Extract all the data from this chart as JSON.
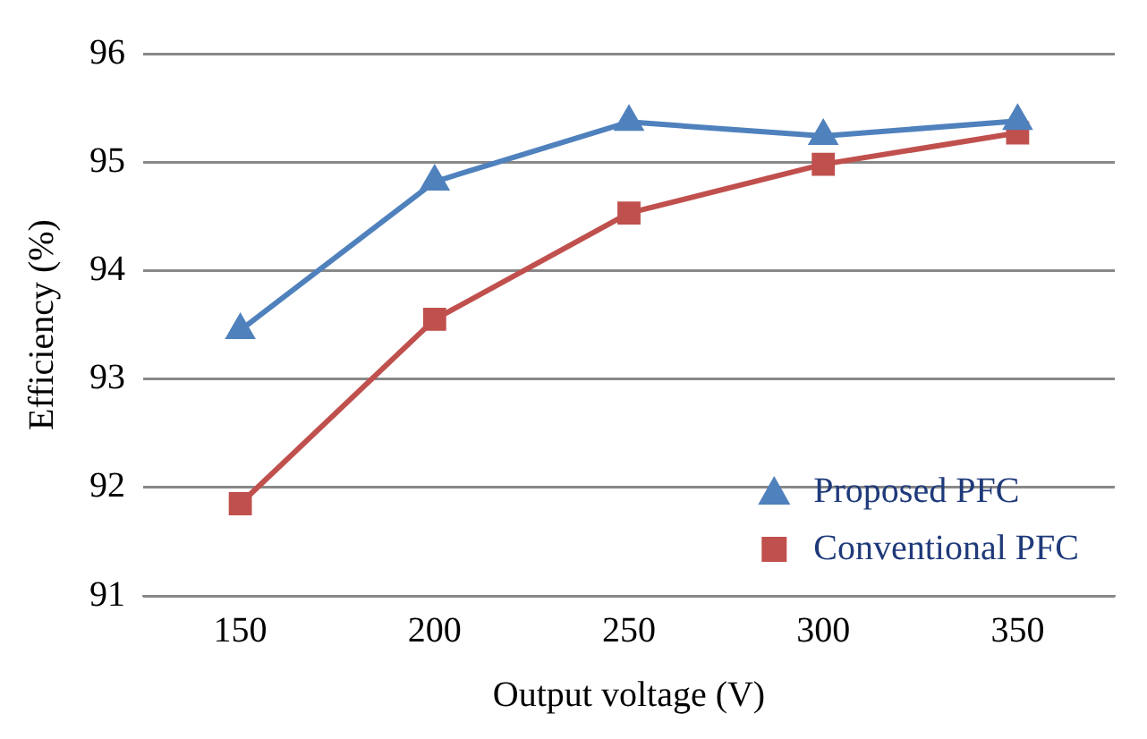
{
  "chart_data": {
    "type": "line",
    "xlabel": "Output voltage (V)",
    "ylabel": "Efficiency (%)",
    "categories": [
      "150",
      "200",
      "250",
      "300",
      "350"
    ],
    "series": [
      {
        "name": "Proposed PFC",
        "color": "#4f81bd",
        "marker": "triangle",
        "values": [
          93.45,
          94.82,
          95.37,
          95.24,
          95.38
        ]
      },
      {
        "name": "Conventional PFC",
        "color": "#c0504d",
        "marker": "square",
        "values": [
          91.85,
          93.55,
          94.53,
          94.98,
          95.27
        ]
      }
    ],
    "ylim": [
      91,
      96
    ],
    "yticks": [
      91,
      92,
      93,
      94,
      95,
      96
    ],
    "grid": "y",
    "legend": "bottom right"
  }
}
